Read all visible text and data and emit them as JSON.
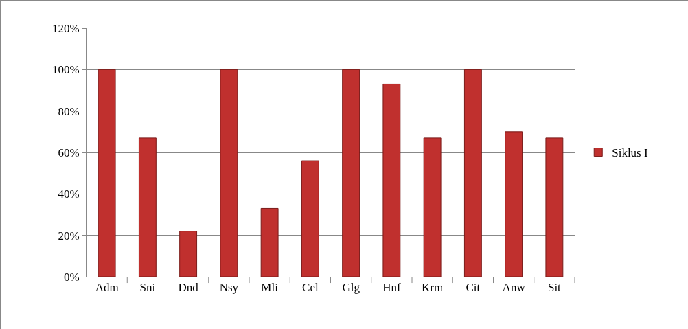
{
  "chart_data": {
    "type": "bar",
    "categories": [
      "Adm",
      "Sni",
      "Dnd",
      "Nsy",
      "Mli",
      "Cel",
      "Glg",
      "Hnf",
      "Krm",
      "Cit",
      "Anw",
      "Sit"
    ],
    "series": [
      {
        "name": "Siklus I",
        "color": "#c0302e",
        "values": [
          100,
          67,
          22,
          100,
          33,
          56,
          100,
          93,
          67,
          100,
          70,
          67
        ]
      }
    ],
    "ylim": [
      0,
      120
    ],
    "yticks": [
      {
        "value": 0,
        "label": "0%"
      },
      {
        "value": 20,
        "label": "20%"
      },
      {
        "value": 40,
        "label": "40%"
      },
      {
        "value": 60,
        "label": "60%"
      },
      {
        "value": 80,
        "label": "80%"
      },
      {
        "value": 100,
        "label": "100%"
      },
      {
        "value": 120,
        "label": "120%"
      }
    ],
    "grid": "y",
    "legend": "right"
  }
}
